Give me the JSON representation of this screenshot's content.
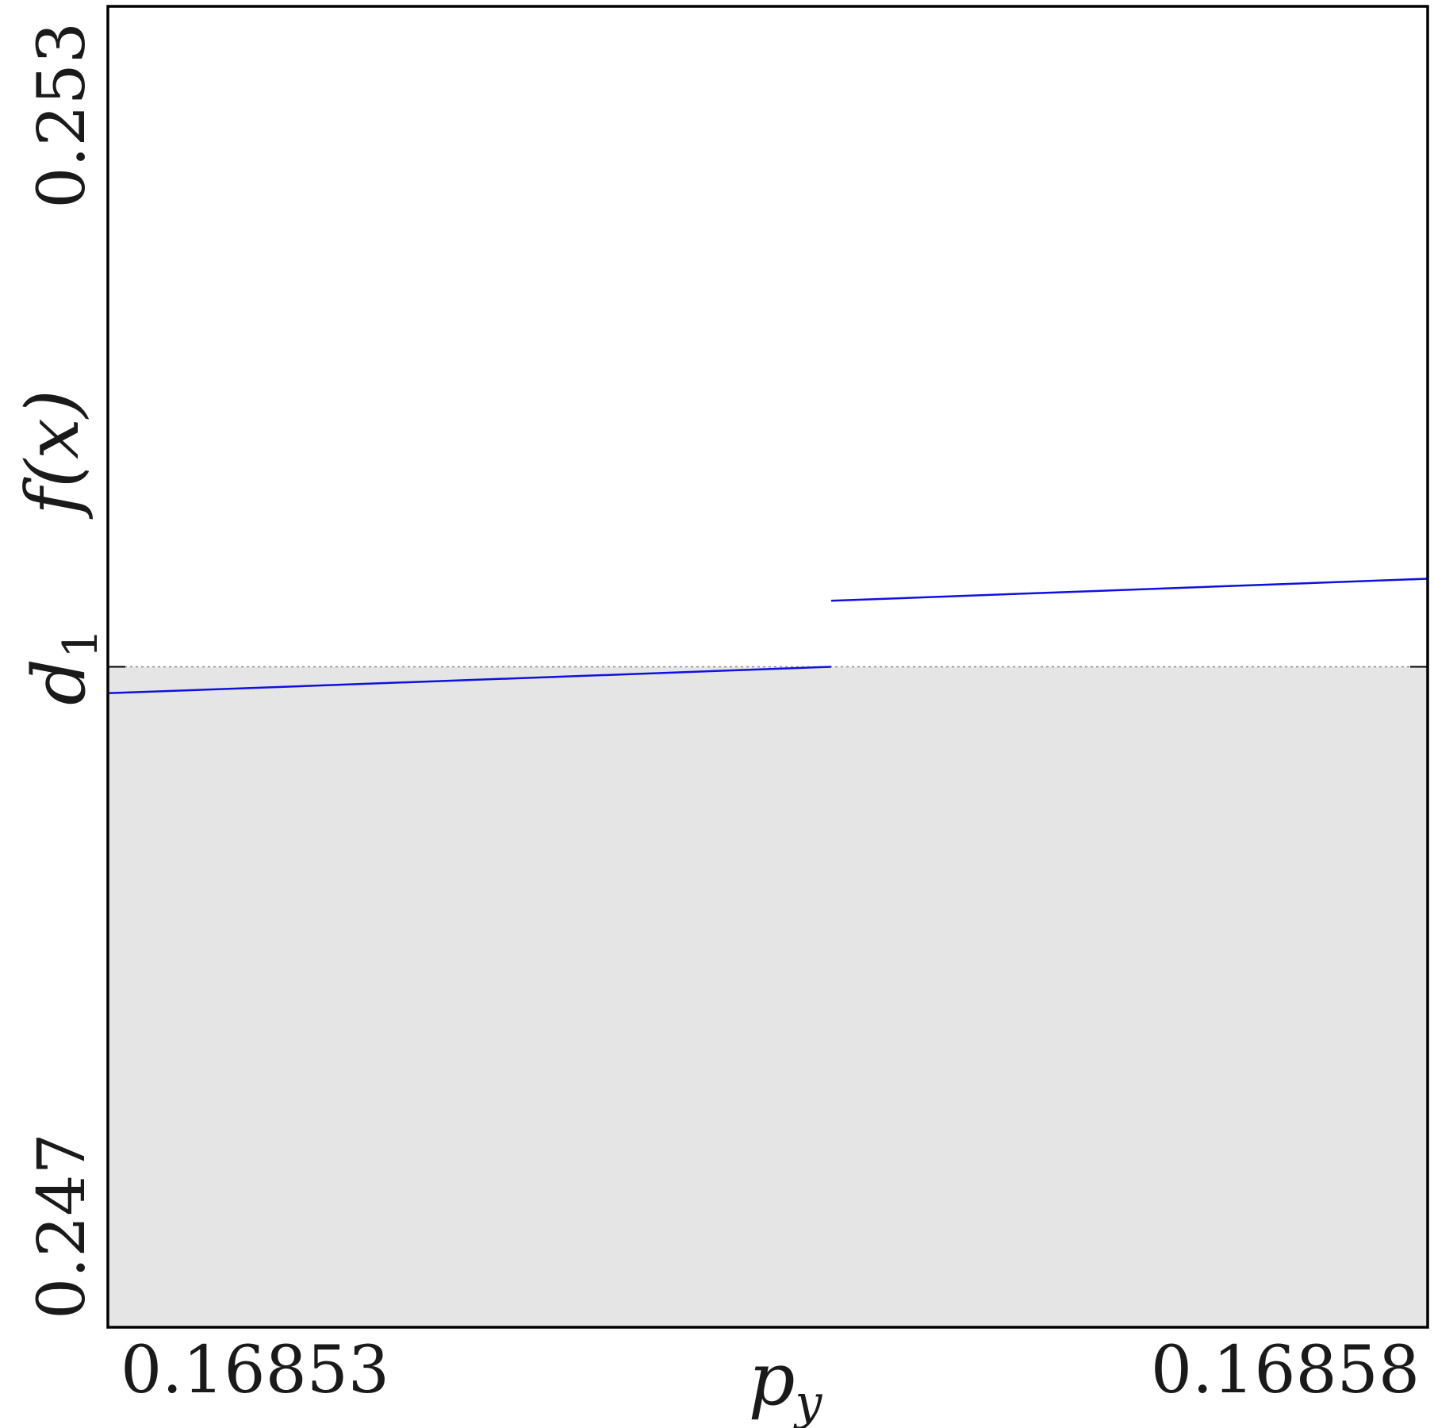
{
  "chart_data": {
    "type": "line",
    "xlabel": "p",
    "xlabel_sub": "y",
    "ylabel": "f(x)",
    "xlim": [
      0.16853,
      0.16858
    ],
    "ylim": [
      0.247,
      0.253
    ],
    "x_ticks": [
      {
        "value": 0.16853,
        "label": "0.16853"
      },
      {
        "value": 0.16858,
        "label": "0.16858"
      }
    ],
    "y_ticks": [
      {
        "value": 0.247,
        "label": "0.247"
      },
      {
        "value": 0.253,
        "label": "0.253"
      }
    ],
    "threshold": {
      "value": 0.25,
      "label": "d",
      "label_sub": "1",
      "style": "dotted",
      "below_fill_color": "#e5e5e5"
    },
    "series": [
      {
        "segments": [
          {
            "x": [
              0.16853,
              0.1685574
            ],
            "y": [
              0.24988,
              0.25
            ]
          },
          {
            "x": [
              0.1685574,
              0.16858
            ],
            "y": [
              0.2503,
              0.2504
            ]
          }
        ],
        "color": "#1010e0"
      }
    ],
    "grid": false,
    "frame_color": "#000000"
  }
}
